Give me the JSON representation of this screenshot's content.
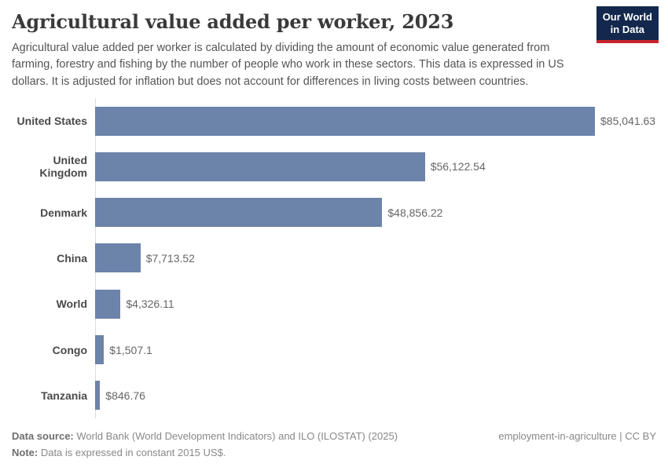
{
  "header": {
    "title": "Agricultural value added per worker, 2023",
    "subtitle_lines": [
      "Agricultural value added per worker is calculated by dividing the amount of economic value generated from farming, forestry and fishing by the number of people who work in these sectors. This data is expressed in US dollars. It is adjusted for inflation but does not account for differences in living costs between countries."
    ],
    "logo": {
      "line1": "Our World",
      "line2": "in Data",
      "bg_color": "#13284c",
      "accent_color": "#c7252b"
    }
  },
  "chart_data": {
    "type": "bar",
    "orientation": "horizontal",
    "title": "Agricultural value added per worker, 2023",
    "categories": [
      "United States",
      "United Kingdom",
      "Denmark",
      "China",
      "World",
      "Congo",
      "Tanzania"
    ],
    "values": [
      85041.63,
      56122.54,
      48856.22,
      7713.52,
      4326.11,
      1507.1,
      846.76
    ],
    "value_labels": [
      "$85,041.63",
      "$56,122.54",
      "$48,856.22",
      "$7,713.52",
      "$4,326.11",
      "$1,507.1",
      "$846.76"
    ],
    "unit": "US$ (constant 2015)",
    "xlim": [
      0,
      85041.63
    ],
    "bar_color": "#6c83aa",
    "axis_line_color": "#dcdcdc",
    "grid": false,
    "legend": false
  },
  "footer": {
    "source_label": "Data source:",
    "source_text": " World Bank (World Development Indicators) and ILO (ILOSTAT) (2025)",
    "note_label": "Note:",
    "note_text": " Data is expressed in constant 2015 US$.",
    "right_text": "employment-in-agriculture | CC BY"
  }
}
